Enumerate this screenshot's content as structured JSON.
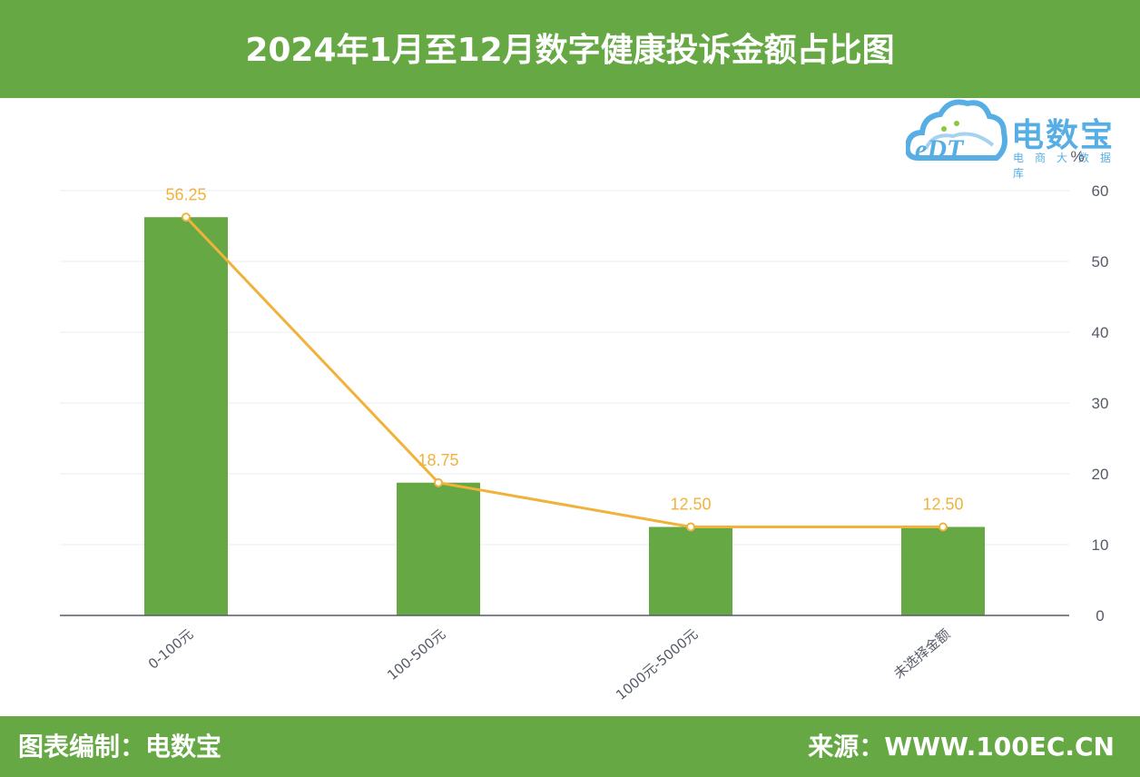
{
  "header": {
    "title": "2024年1月至12月数字健康投诉金额占比图"
  },
  "footer": {
    "left": "图表编制：电数宝",
    "right": "来源：WWW.100EC.CN"
  },
  "logo": {
    "icon": "cloud-edt-icon",
    "mark": "eDT",
    "name": "电数宝",
    "subtitle": "电商大数据库"
  },
  "colors": {
    "header": "#65a844",
    "bar": "#65a844",
    "line": "#f1b23c",
    "logo": "#57aee4"
  },
  "chart_data": {
    "type": "bar",
    "categories": [
      "0-100元",
      "100-500元",
      "1000元-5000元",
      "未选择金额"
    ],
    "series": [
      {
        "type": "bar",
        "values": [
          56.25,
          18.75,
          12.5,
          12.5
        ]
      },
      {
        "type": "line",
        "values": [
          56.25,
          18.75,
          12.5,
          12.5
        ]
      }
    ],
    "data_labels": [
      "56.25",
      "18.75",
      "12.50",
      "12.50"
    ],
    "y_unit": "%",
    "y_axis_position": "right",
    "ylim": [
      0,
      60
    ],
    "y_ticks": [
      0,
      10,
      20,
      30,
      40,
      50,
      60
    ],
    "grid": true
  }
}
